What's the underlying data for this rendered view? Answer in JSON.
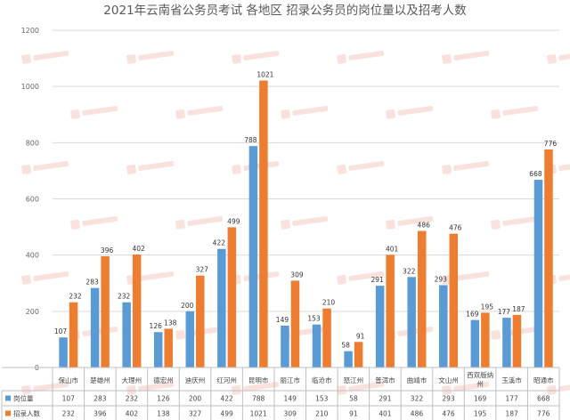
{
  "chart_data": {
    "type": "bar",
    "title": "2021年云南省公务员考试 各地区 招录公务员的岗位量以及招考人数",
    "categories": [
      "保山市",
      "楚雄州",
      "大理州",
      "德宏州",
      "迪庆州",
      "红河州",
      "昆明市",
      "丽江市",
      "临沧市",
      "怒江州",
      "普洱市",
      "曲靖市",
      "文山州",
      "西双版纳州",
      "玉溪市",
      "昭通市"
    ],
    "series": [
      {
        "name": "岗位量",
        "color": "#5b9bd5",
        "values": [
          107,
          283,
          232,
          126,
          200,
          422,
          788,
          149,
          153,
          58,
          291,
          322,
          293,
          169,
          177,
          668
        ]
      },
      {
        "name": "招录人数",
        "color": "#ed7d31",
        "values": [
          232,
          396,
          402,
          138,
          327,
          499,
          1021,
          309,
          210,
          91,
          401,
          486,
          476,
          195,
          187,
          776
        ]
      }
    ],
    "y_ticks": [
      "0",
      "200",
      "400",
      "600",
      "800",
      "1000",
      "1200"
    ],
    "ylim": [
      0,
      1200
    ],
    "grid": true,
    "legend_position": "bottom-table"
  }
}
